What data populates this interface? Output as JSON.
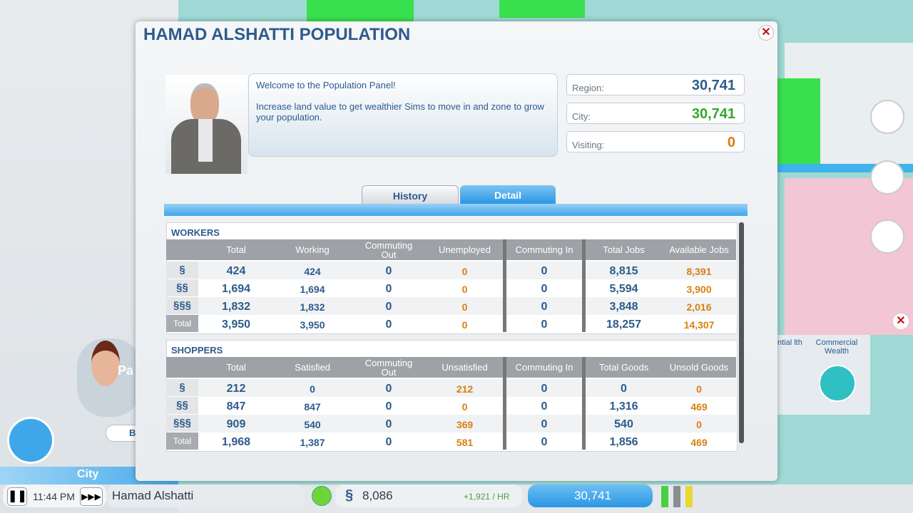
{
  "panel": {
    "title": "HAMAD ALSHATTI POPULATION"
  },
  "advisor": {
    "messages": [
      "Welcome to the Population Panel!",
      "Increase land value to get wealthier Sims to move in and zone to grow your population."
    ]
  },
  "stats": [
    {
      "label": "Region:",
      "value": "30,741"
    },
    {
      "label": "City:",
      "value": "30,741"
    },
    {
      "label": "Visiting:",
      "value": "0"
    }
  ],
  "tabs": [
    "History",
    "Detail"
  ],
  "workers": {
    "title": "WORKERS",
    "headers": [
      "Total",
      "Working",
      "Commuting Out",
      "Unemployed",
      "Commuting In",
      "Total Jobs",
      "Available Jobs"
    ],
    "rows": [
      {
        "label": "§",
        "cells": [
          "424",
          "424",
          "0",
          "0",
          "0",
          "8,815",
          "8,391"
        ]
      },
      {
        "label": "§§",
        "cells": [
          "1,694",
          "1,694",
          "0",
          "0",
          "0",
          "5,594",
          "3,900"
        ]
      },
      {
        "label": "§§§",
        "cells": [
          "1,832",
          "1,832",
          "0",
          "0",
          "0",
          "3,848",
          "2,016"
        ]
      },
      {
        "label": "Total",
        "cells": [
          "3,950",
          "3,950",
          "0",
          "0",
          "0",
          "18,257",
          "14,307"
        ]
      }
    ]
  },
  "shoppers": {
    "title": "SHOPPERS",
    "headers": [
      "Total",
      "Satisfied",
      "Commuting Out",
      "Unsatisfied",
      "Commuting In",
      "Total Goods",
      "Unsold Goods"
    ],
    "rows": [
      {
        "label": "§",
        "cells": [
          "212",
          "0",
          "0",
          "212",
          "0",
          "0",
          "0"
        ]
      },
      {
        "label": "§§",
        "cells": [
          "847",
          "847",
          "0",
          "0",
          "0",
          "1,316",
          "469"
        ]
      },
      {
        "label": "§§§",
        "cells": [
          "909",
          "540",
          "0",
          "369",
          "0",
          "540",
          "0"
        ]
      },
      {
        "label": "Total",
        "cells": [
          "1,968",
          "1,387",
          "0",
          "581",
          "0",
          "1,856",
          "469"
        ]
      }
    ]
  },
  "bottom_bar": {
    "time": "11:44 PM",
    "city_name": "Hamad Alshatti",
    "funds": "8,086",
    "income": "+1,921 / HR",
    "population": "30,741"
  },
  "side": {
    "city_label": "City",
    "advisor_name": "Pa",
    "button": "B",
    "wealth_partial": "ntial lth",
    "commercial_wealth": "Commercial Wealth"
  }
}
